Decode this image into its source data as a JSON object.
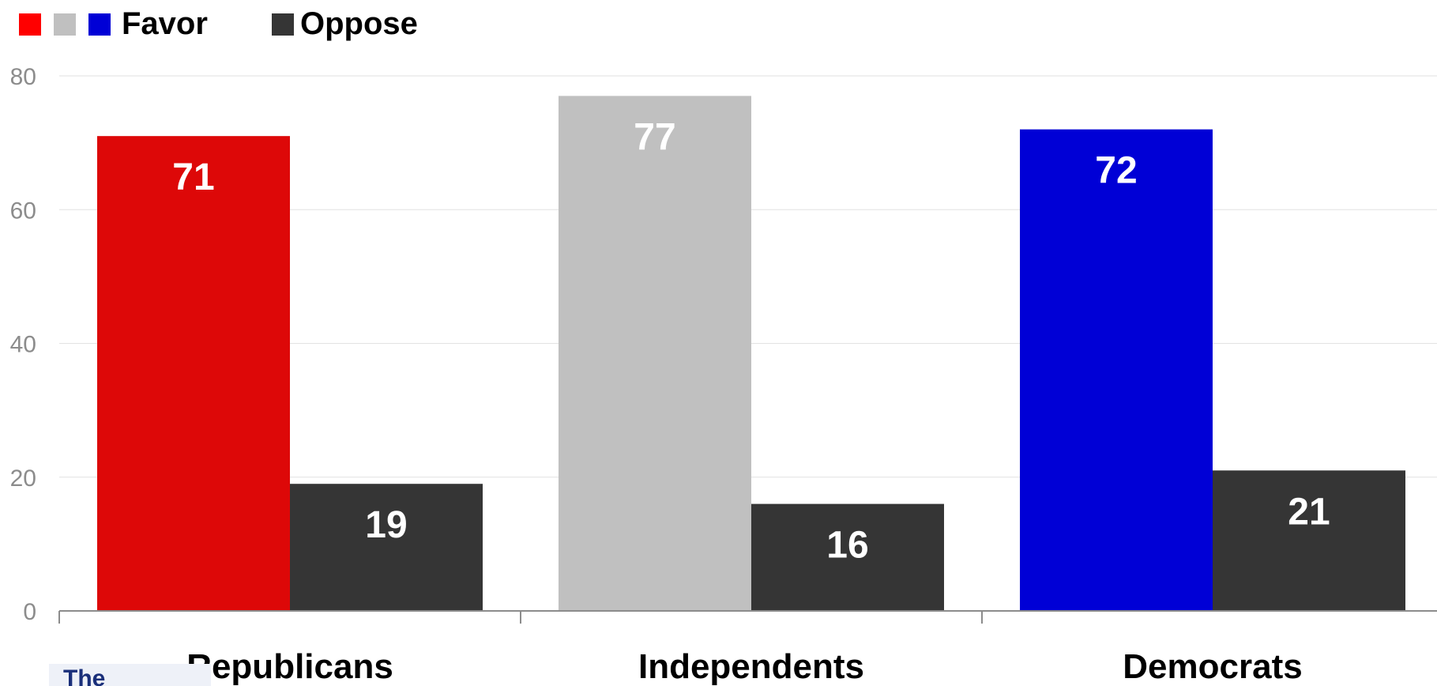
{
  "chart_data": {
    "type": "bar",
    "categories": [
      "Republicans",
      "Independents",
      "Democrats"
    ],
    "series": [
      {
        "name": "Favor",
        "values": [
          71,
          77,
          72
        ],
        "colors": [
          "#dd0808",
          "#c0c0c0",
          "#0000d6"
        ]
      },
      {
        "name": "Oppose",
        "values": [
          19,
          16,
          21
        ],
        "colors": [
          "#353535",
          "#353535",
          "#353535"
        ]
      }
    ],
    "legend": {
      "placement": "top-left",
      "favor_swatch_colors": [
        "#ff0000",
        "#c0c0c0",
        "#0000d6"
      ],
      "oppose_swatch_color": "#353535"
    },
    "yticks": [
      "0",
      "20",
      "40",
      "60",
      "80"
    ],
    "ylim": [
      0,
      80
    ],
    "grid": true,
    "data_labels": true,
    "title": "",
    "xlabel": "",
    "ylabel": ""
  },
  "logo": {
    "text": "The"
  }
}
